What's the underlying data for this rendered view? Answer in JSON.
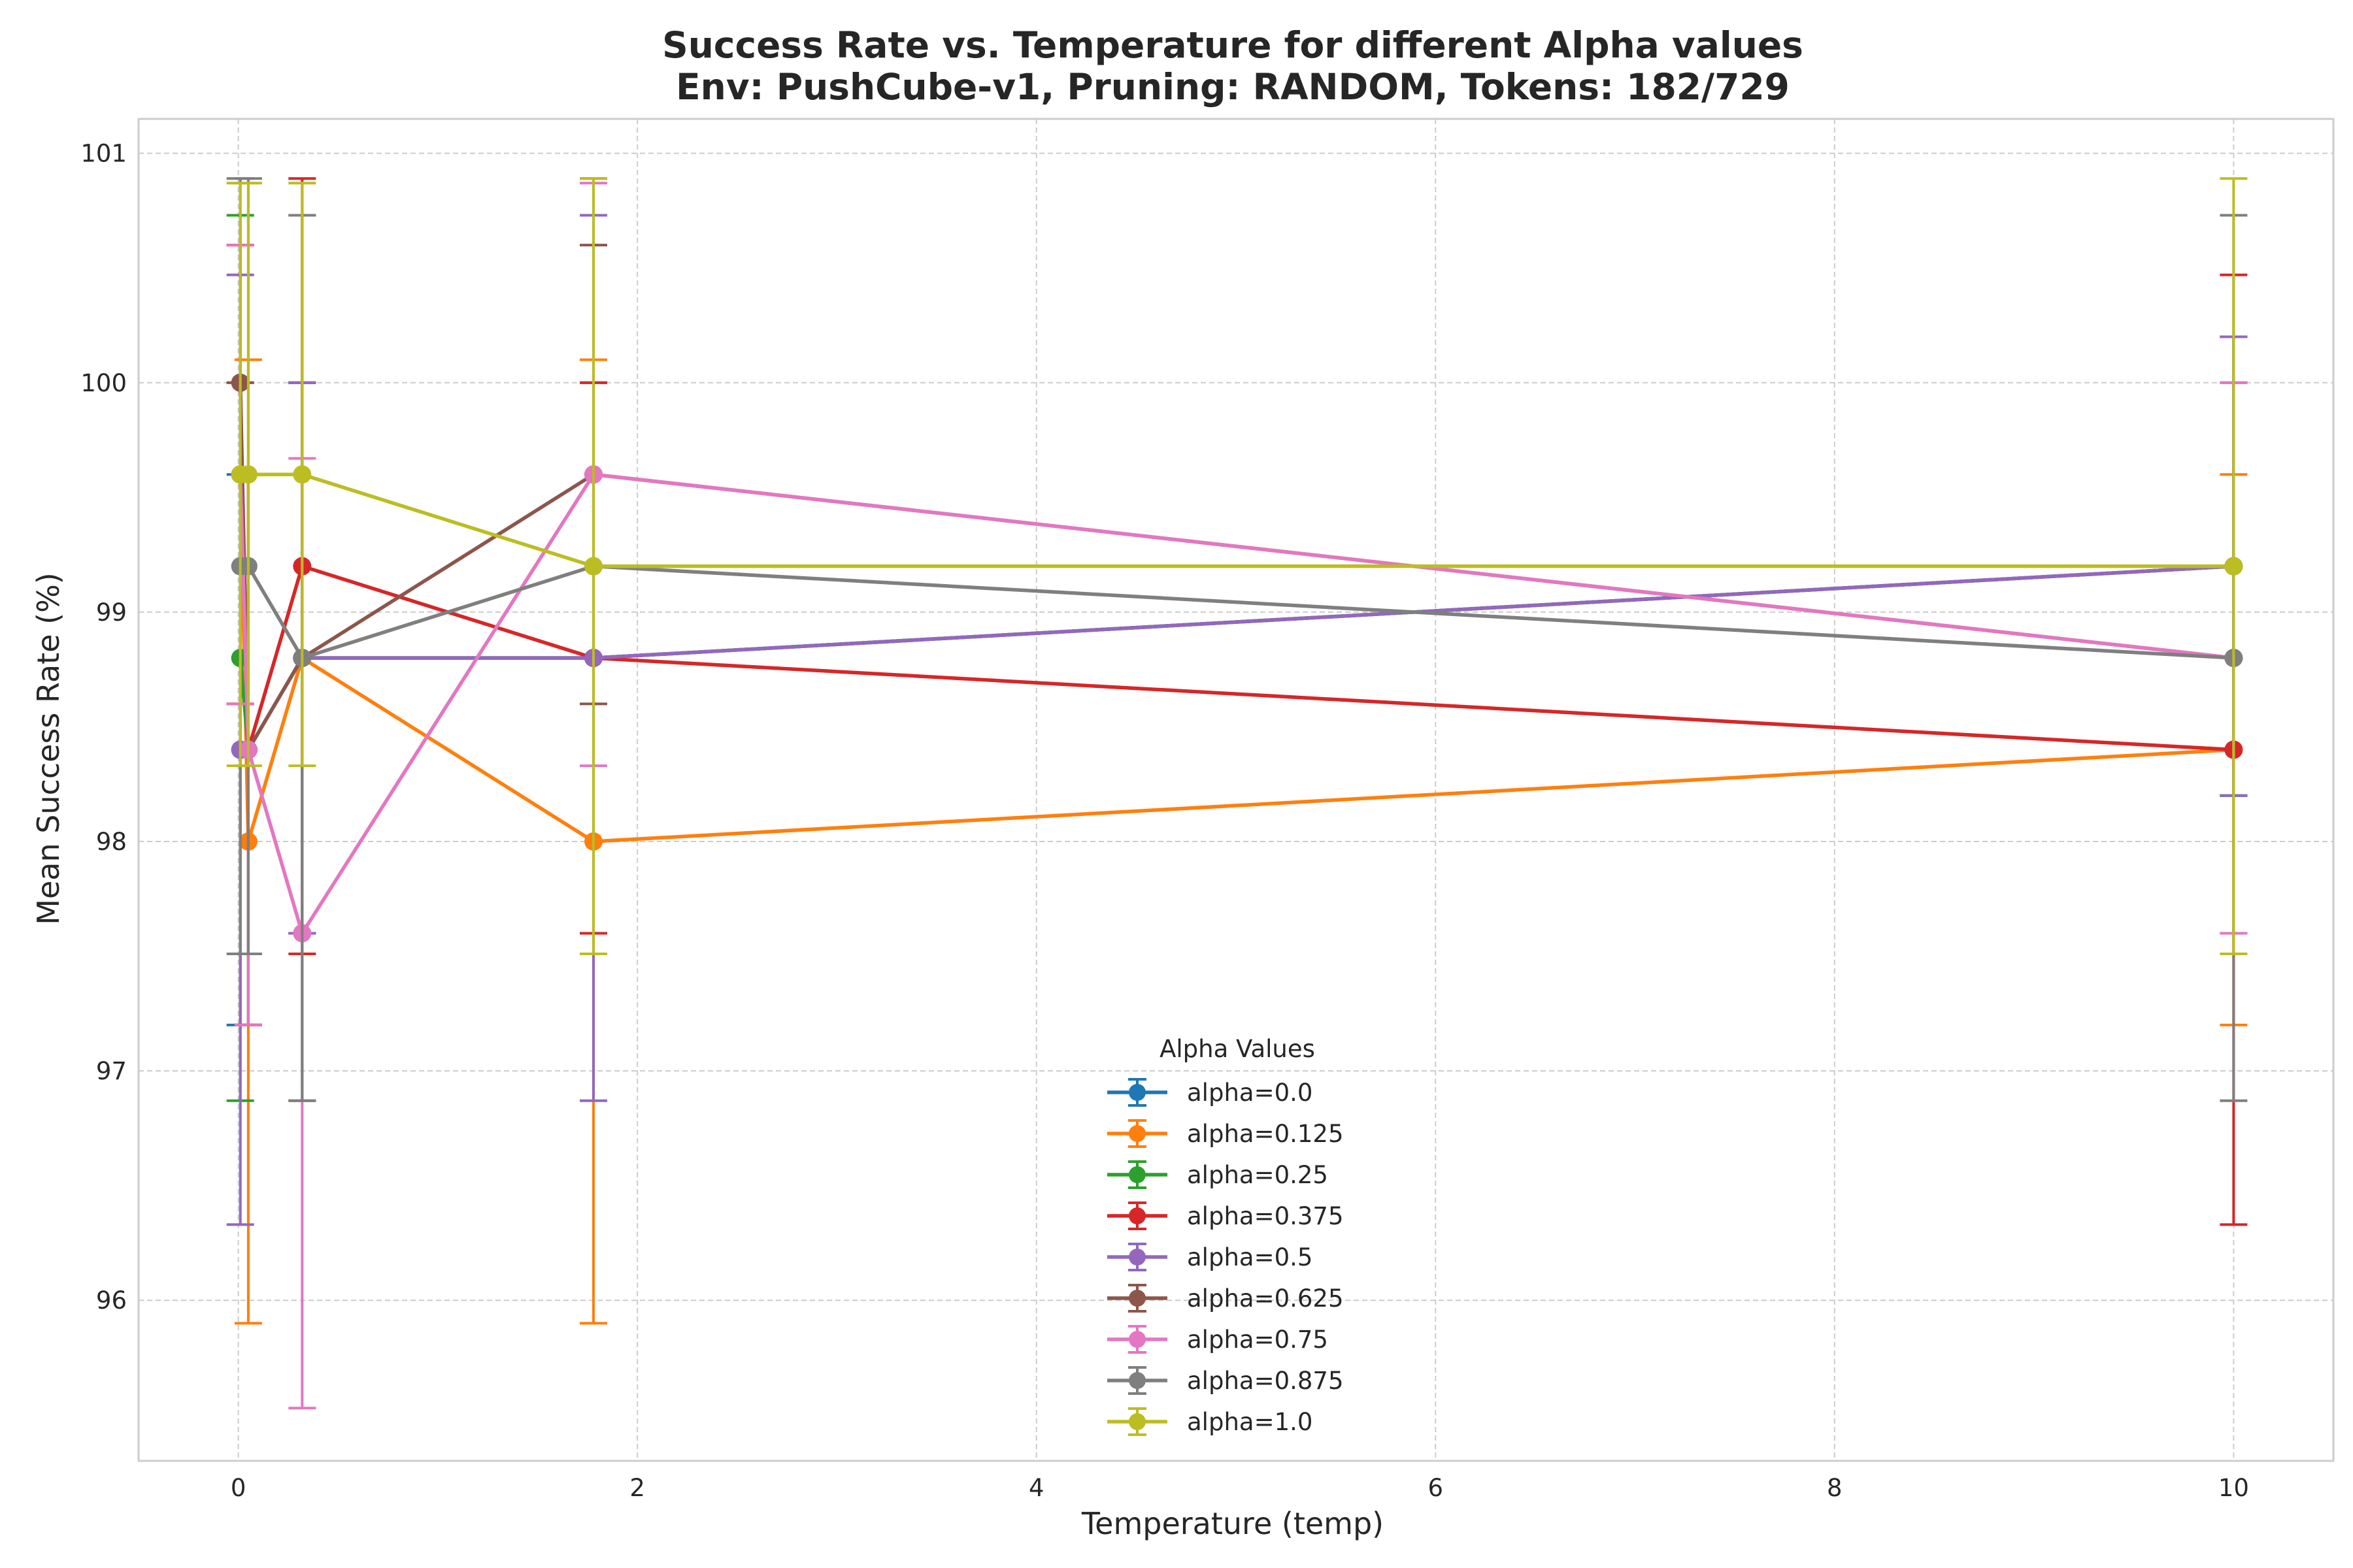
{
  "chart_data": {
    "type": "line",
    "title": "Success Rate vs. Temperature for different Alpha values",
    "subtitle": "Env: PushCube-v1, Pruning: RANDOM, Tokens: 182/729",
    "xlabel": "Temperature (temp)",
    "ylabel": "Mean Success Rate (%)",
    "xlim": [
      -0.5,
      10.5
    ],
    "ylim": [
      95.3,
      101.15
    ],
    "xticks": [
      0,
      2,
      4,
      6,
      8,
      10
    ],
    "yticks": [
      96,
      97,
      98,
      99,
      100,
      101
    ],
    "grid": true,
    "legend": {
      "title": "Alpha Values",
      "position": "lower-center"
    },
    "x": [
      0.01,
      0.05,
      0.32,
      1.78,
      10
    ],
    "series": [
      {
        "name": "alpha=0.0",
        "color": "#1f77b4",
        "values": [
          98.4,
          98.4,
          98.8,
          98.8,
          99.2
        ],
        "err": [
          1.2,
          1.2,
          1.2,
          1.2,
          1.0
        ]
      },
      {
        "name": "alpha=0.125",
        "color": "#ff7f0e",
        "values": [
          99.6,
          98.0,
          98.8,
          98.0,
          98.4
        ],
        "err": [
          1.0,
          2.1,
          1.2,
          2.1,
          1.2
        ]
      },
      {
        "name": "alpha=0.25",
        "color": "#2ca02c",
        "values": [
          98.8,
          98.4,
          98.8,
          98.8,
          99.2
        ],
        "err": [
          1.93,
          1.2,
          1.2,
          1.2,
          1.0
        ]
      },
      {
        "name": "alpha=0.375",
        "color": "#d62728",
        "values": [
          99.6,
          98.4,
          99.2,
          98.8,
          98.4
        ],
        "err": [
          1.0,
          1.2,
          1.69,
          1.2,
          2.07
        ]
      },
      {
        "name": "alpha=0.5",
        "color": "#9467bd",
        "values": [
          98.4,
          98.4,
          98.8,
          98.8,
          99.2
        ],
        "err": [
          2.07,
          1.2,
          1.2,
          1.93,
          1.0
        ]
      },
      {
        "name": "alpha=0.625",
        "color": "#8c564b",
        "values": [
          100.0,
          98.4,
          98.8,
          99.6,
          98.8
        ],
        "err": [
          0.0,
          1.2,
          1.93,
          1.0,
          1.2
        ]
      },
      {
        "name": "alpha=0.75",
        "color": "#e377c2",
        "values": [
          99.6,
          98.4,
          97.6,
          99.6,
          98.8
        ],
        "err": [
          1.0,
          1.2,
          2.07,
          1.27,
          1.2
        ]
      },
      {
        "name": "alpha=0.875",
        "color": "#7f7f7f",
        "values": [
          99.2,
          99.2,
          98.8,
          99.2,
          98.8
        ],
        "err": [
          1.69,
          1.69,
          1.93,
          1.69,
          1.93
        ]
      },
      {
        "name": "alpha=1.0",
        "color": "#bcbd22",
        "values": [
          99.6,
          99.6,
          99.6,
          99.2,
          99.2
        ],
        "err": [
          1.27,
          1.27,
          1.27,
          1.69,
          1.69
        ]
      }
    ]
  }
}
